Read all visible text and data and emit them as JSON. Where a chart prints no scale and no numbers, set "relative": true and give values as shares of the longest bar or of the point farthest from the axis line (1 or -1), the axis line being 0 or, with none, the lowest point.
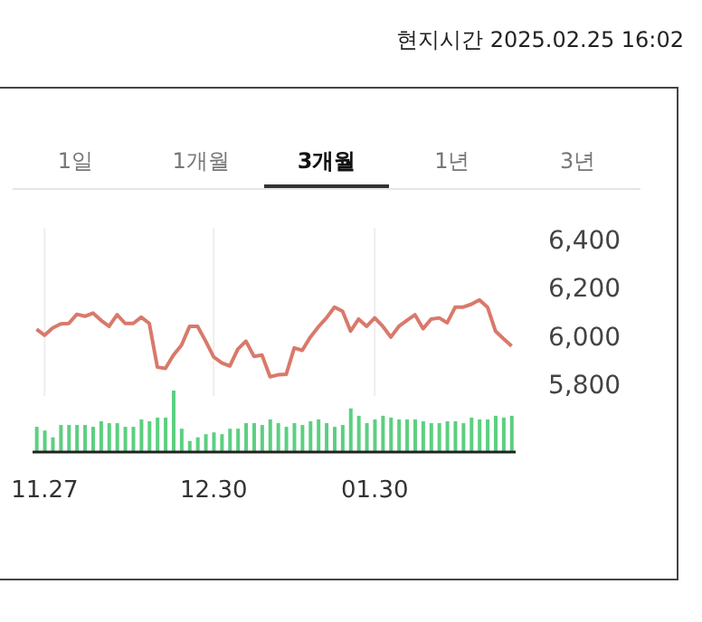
{
  "chart_data": [
    {
      "type": "line",
      "subtitle": "현지시간 2025.02.25 16:02",
      "annotations": [
        "1일",
        "1개월",
        "3개월",
        "1년",
        "3년"
      ],
      "categories": [
        null,
        "11.27",
        null,
        null,
        null,
        null,
        null,
        null,
        null,
        null,
        null,
        null,
        null,
        null,
        null,
        null,
        null,
        null,
        null,
        null,
        null,
        null,
        "12.30",
        null,
        null,
        null,
        null,
        null,
        null,
        null,
        null,
        null,
        null,
        null,
        null,
        null,
        null,
        null,
        null,
        null,
        null,
        null,
        "01.30",
        null,
        null,
        null,
        null,
        null,
        null,
        null,
        null,
        null,
        null,
        null,
        null,
        null,
        null,
        null,
        null,
        null
      ],
      "series": [
        {
          "color": "#d9796b",
          "values": [
            6028,
            6003,
            6033,
            6050,
            6052,
            6090,
            6082,
            6095,
            6065,
            6040,
            6088,
            6052,
            6052,
            6078,
            6052,
            5870,
            5865,
            5920,
            5962,
            6040,
            6040,
            5978,
            5912,
            5888,
            5875,
            5945,
            5978,
            5915,
            5920,
            5830,
            5838,
            5840,
            5950,
            5940,
            5995,
            6038,
            6075,
            6120,
            6103,
            6020,
            6070,
            6040,
            6075,
            6040,
            5995,
            6040,
            6065,
            6088,
            6030,
            6070,
            6075,
            6055,
            6120,
            6120,
            6132,
            6150,
            6120,
            6020,
            5988,
            5958
          ]
        }
      ],
      "ylim": [
        5750,
        6450
      ],
      "yticks": [
        {
          "value": 5800,
          "label": "5,800"
        },
        {
          "value": 6000,
          "label": "6,000"
        },
        {
          "value": 6200,
          "label": "6,200"
        },
        {
          "value": 6400,
          "label": "6,400"
        }
      ],
      "grid": "x",
      "tick_labels": "y",
      "marker": "none",
      "legend": false
    },
    {
      "type": "bar",
      "relative": true,
      "tick_labels": "x",
      "legend": false,
      "categories": [
        null,
        "11.27",
        null,
        null,
        null,
        null,
        null,
        null,
        null,
        null,
        null,
        null,
        null,
        null,
        null,
        null,
        null,
        null,
        null,
        null,
        null,
        null,
        "12.30",
        null,
        null,
        null,
        null,
        null,
        null,
        null,
        null,
        null,
        null,
        null,
        null,
        null,
        null,
        null,
        null,
        null,
        null,
        null,
        "01.30",
        null,
        null,
        null,
        null,
        null,
        null,
        null,
        null,
        null,
        null,
        null,
        null,
        null,
        null,
        null,
        null,
        null
      ],
      "series": [
        {
          "color": "#5ccf80",
          "values": [
            0.41,
            0.35,
            0.24,
            0.44,
            0.44,
            0.44,
            0.44,
            0.41,
            0.5,
            0.47,
            0.47,
            0.41,
            0.41,
            0.53,
            0.5,
            0.56,
            0.56,
            1,
            0.38,
            0.18,
            0.24,
            0.29,
            0.32,
            0.29,
            0.38,
            0.38,
            0.47,
            0.47,
            0.44,
            0.53,
            0.47,
            0.41,
            0.47,
            0.44,
            0.5,
            0.53,
            0.47,
            0.41,
            0.44,
            0.71,
            0.59,
            0.47,
            0.53,
            0.59,
            0.56,
            0.53,
            0.53,
            0.53,
            0.5,
            0.47,
            0.47,
            0.5,
            0.5,
            0.47,
            0.56,
            0.53,
            0.53,
            0.59,
            0.56,
            0.59
          ]
        }
      ]
    }
  ]
}
